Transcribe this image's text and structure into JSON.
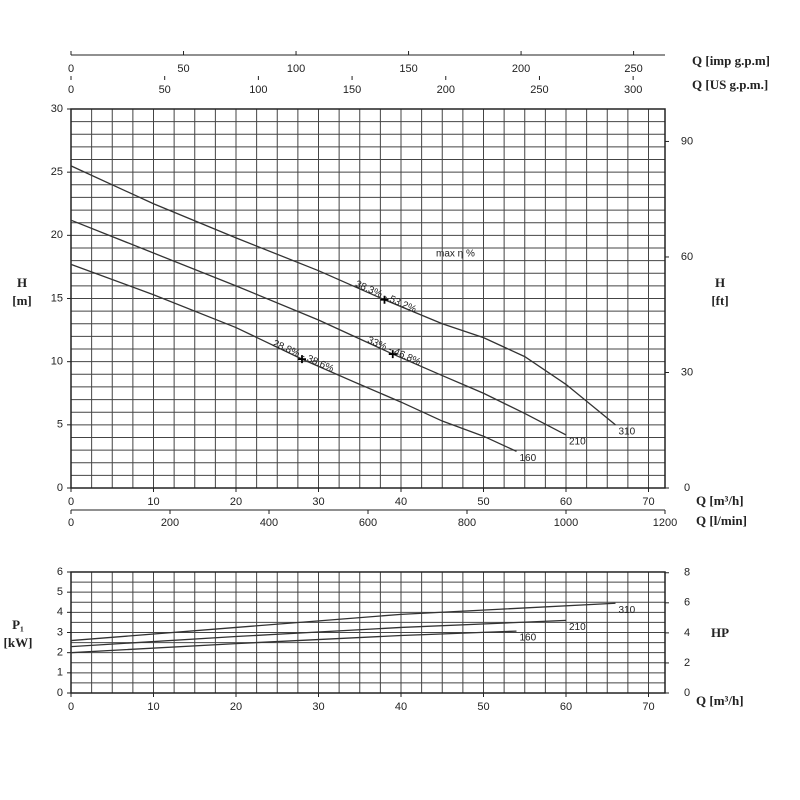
{
  "chart_data": [
    {
      "type": "line",
      "x_label": "Q [m³/h]",
      "y_label": [
        "H",
        "[m]"
      ],
      "y2_label": [
        "H",
        "[ft]"
      ],
      "xlim": [
        0,
        72
      ],
      "xticks": [
        0,
        10,
        20,
        30,
        40,
        50,
        60,
        70
      ],
      "ylim": [
        0,
        30
      ],
      "yticks": [
        0,
        5,
        10,
        15,
        20,
        25,
        30
      ],
      "y2lim": [
        0,
        98.43
      ],
      "y2ticks": [
        0,
        30,
        60,
        90
      ],
      "grid": {
        "x": 2.5,
        "y": 1
      },
      "extra_x_axes": [
        {
          "position": "bottom",
          "label": "Q [l/min]",
          "lim": [
            0,
            1200
          ],
          "ticks": [
            0,
            200,
            400,
            600,
            800,
            1000,
            1200
          ]
        },
        {
          "position": "top",
          "label": "Q [imp g.p.m]",
          "lim": [
            0,
            263.96
          ],
          "ticks": [
            0,
            50,
            100,
            150,
            200,
            250
          ]
        },
        {
          "position": "top",
          "label": "Q [US g.p.m.]",
          "lim": [
            0,
            317
          ],
          "ticks": [
            0,
            50,
            100,
            150,
            200,
            250,
            300
          ]
        }
      ],
      "annotation": "max η %",
      "series": [
        {
          "name": "310",
          "color": "#333333",
          "x": [
            0,
            10,
            20,
            30,
            38,
            45,
            50,
            55,
            60,
            66
          ],
          "values": [
            25.5,
            22.5,
            19.8,
            17.2,
            14.9,
            13,
            11.9,
            10.4,
            8.2,
            5
          ]
        },
        {
          "name": "210",
          "color": "#333333",
          "x": [
            0,
            10,
            20,
            30,
            39,
            45,
            50,
            55,
            60
          ],
          "values": [
            21.2,
            18.6,
            16,
            13.3,
            10.6,
            8.9,
            7.5,
            5.9,
            4.2
          ]
        },
        {
          "name": "160",
          "color": "#333333",
          "x": [
            0,
            10,
            20,
            28,
            35,
            40,
            45,
            50,
            54
          ],
          "values": [
            17.7,
            15.3,
            12.7,
            10.2,
            8.2,
            6.8,
            5.3,
            4.1,
            2.9
          ]
        }
      ],
      "markers": [
        {
          "label": "38.3% - 53.2%",
          "x": 38,
          "y": 14.9
        },
        {
          "label": "33% - 46.8%",
          "x": 39,
          "y": 10.6
        },
        {
          "label": "28.8% - 38.6%",
          "x": 28,
          "y": 10.2
        }
      ]
    },
    {
      "type": "line",
      "x_label": "Q [m³/h]",
      "y_label": [
        "P₁",
        "[kW]"
      ],
      "y2_label": [
        "HP"
      ],
      "xlim": [
        0,
        72
      ],
      "xticks": [
        0,
        10,
        20,
        30,
        40,
        50,
        60,
        70
      ],
      "ylim": [
        0,
        6
      ],
      "yticks": [
        0,
        1,
        2,
        3,
        4,
        5,
        6
      ],
      "y2lim": [
        0,
        8.05
      ],
      "y2ticks": [
        0,
        2,
        4,
        6,
        8
      ],
      "grid": {
        "x": 2.5,
        "y": 0.5
      },
      "series": [
        {
          "name": "310",
          "color": "#333333",
          "x": [
            0,
            20,
            40,
            66
          ],
          "values": [
            2.6,
            3.25,
            3.9,
            4.45
          ]
        },
        {
          "name": "210",
          "color": "#333333",
          "x": [
            0,
            20,
            40,
            60
          ],
          "values": [
            2.3,
            2.8,
            3.25,
            3.6
          ]
        },
        {
          "name": "160",
          "color": "#333333",
          "x": [
            0,
            20,
            40,
            54
          ],
          "values": [
            2.0,
            2.45,
            2.85,
            3.07
          ]
        }
      ]
    }
  ]
}
